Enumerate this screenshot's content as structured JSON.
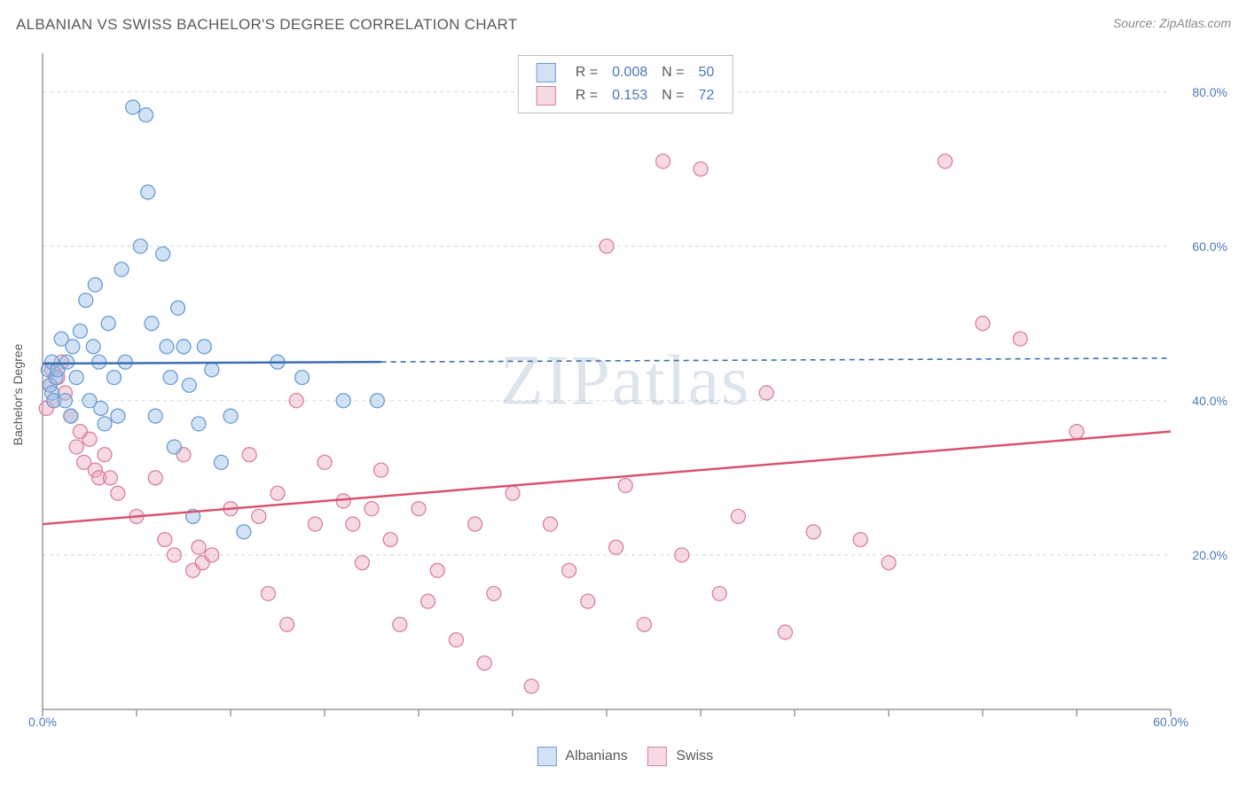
{
  "title": "ALBANIAN VS SWISS BACHELOR'S DEGREE CORRELATION CHART",
  "source_prefix": "Source: ",
  "source_name": "ZipAtlas.com",
  "watermark": "ZIPatlas",
  "chart": {
    "type": "scatter",
    "ylabel": "Bachelor's Degree",
    "xlim": [
      0,
      60
    ],
    "ylim": [
      0,
      85
    ],
    "xtick_positions": [
      0,
      5,
      10,
      15,
      20,
      25,
      30,
      35,
      40,
      45,
      50,
      55,
      60
    ],
    "xtick_labels_shown": {
      "0": "0.0%",
      "60": "60.0%"
    },
    "ytick_positions": [
      20,
      40,
      60,
      80
    ],
    "ytick_labels": [
      "20.0%",
      "40.0%",
      "60.0%",
      "80.0%"
    ],
    "grid_color": "#d8d8d8",
    "axis_color": "#9a9a9a",
    "background_color": "#ffffff",
    "series": {
      "albanians": {
        "label": "Albanians",
        "fill": "rgba(150,190,230,0.45)",
        "stroke": "#6d9dd1",
        "line_color": "#3c6fb0",
        "marker_r": 8,
        "R_label": "R =",
        "R_value": "0.008",
        "N_label": "N =",
        "N_value": "50",
        "regression": {
          "x1": 0,
          "y1": 44.8,
          "x2": 60,
          "y2": 45.5,
          "solid_until_x": 18
        },
        "points": [
          [
            0.3,
            44
          ],
          [
            0.4,
            42
          ],
          [
            0.5,
            41
          ],
          [
            0.6,
            40
          ],
          [
            0.5,
            45
          ],
          [
            0.7,
            43
          ],
          [
            0.8,
            44
          ],
          [
            1.0,
            48
          ],
          [
            1.2,
            40
          ],
          [
            1.5,
            38
          ],
          [
            1.3,
            45
          ],
          [
            1.6,
            47
          ],
          [
            1.8,
            43
          ],
          [
            2.0,
            49
          ],
          [
            2.3,
            53
          ],
          [
            2.5,
            40
          ],
          [
            2.7,
            47
          ],
          [
            2.8,
            55
          ],
          [
            3.0,
            45
          ],
          [
            3.1,
            39
          ],
          [
            3.3,
            37
          ],
          [
            3.5,
            50
          ],
          [
            3.8,
            43
          ],
          [
            4.0,
            38
          ],
          [
            4.2,
            57
          ],
          [
            4.4,
            45
          ],
          [
            4.8,
            78
          ],
          [
            5.2,
            60
          ],
          [
            5.5,
            77
          ],
          [
            5.6,
            67
          ],
          [
            5.8,
            50
          ],
          [
            6.0,
            38
          ],
          [
            6.4,
            59
          ],
          [
            6.6,
            47
          ],
          [
            6.8,
            43
          ],
          [
            7.0,
            34
          ],
          [
            7.2,
            52
          ],
          [
            7.5,
            47
          ],
          [
            7.8,
            42
          ],
          [
            8.0,
            25
          ],
          [
            8.3,
            37
          ],
          [
            8.6,
            47
          ],
          [
            9.0,
            44
          ],
          [
            9.5,
            32
          ],
          [
            10.0,
            38
          ],
          [
            10.7,
            23
          ],
          [
            12.5,
            45
          ],
          [
            13.8,
            43
          ],
          [
            16.0,
            40
          ],
          [
            17.8,
            40
          ]
        ]
      },
      "swiss": {
        "label": "Swiss",
        "fill": "rgba(235,160,185,0.40)",
        "stroke": "#d9819f",
        "line_color": "#d8536f",
        "marker_r": 8,
        "R_label": "R =",
        "R_value": "0.153",
        "N_label": "N =",
        "N_value": "72",
        "regression": {
          "x1": 0,
          "y1": 24,
          "x2": 60,
          "y2": 36,
          "solid_until_x": 60
        },
        "points": [
          [
            0.2,
            39
          ],
          [
            0.4,
            42
          ],
          [
            0.5,
            44
          ],
          [
            0.6,
            40
          ],
          [
            0.8,
            43
          ],
          [
            1.0,
            45
          ],
          [
            1.2,
            41
          ],
          [
            1.5,
            38
          ],
          [
            1.8,
            34
          ],
          [
            2.0,
            36
          ],
          [
            2.2,
            32
          ],
          [
            2.5,
            35
          ],
          [
            2.8,
            31
          ],
          [
            3.0,
            30
          ],
          [
            3.3,
            33
          ],
          [
            3.6,
            30
          ],
          [
            4.0,
            28
          ],
          [
            5.0,
            25
          ],
          [
            6.0,
            30
          ],
          [
            6.5,
            22
          ],
          [
            7.0,
            20
          ],
          [
            7.5,
            33
          ],
          [
            8.0,
            18
          ],
          [
            8.3,
            21
          ],
          [
            8.5,
            19
          ],
          [
            9.0,
            20
          ],
          [
            10.0,
            26
          ],
          [
            11.0,
            33
          ],
          [
            11.5,
            25
          ],
          [
            12.0,
            15
          ],
          [
            12.5,
            28
          ],
          [
            13.0,
            11
          ],
          [
            13.5,
            40
          ],
          [
            14.5,
            24
          ],
          [
            15.0,
            32
          ],
          [
            16.0,
            27
          ],
          [
            16.5,
            24
          ],
          [
            17.0,
            19
          ],
          [
            17.5,
            26
          ],
          [
            18.0,
            31
          ],
          [
            18.5,
            22
          ],
          [
            19.0,
            11
          ],
          [
            20.0,
            26
          ],
          [
            20.5,
            14
          ],
          [
            21.0,
            18
          ],
          [
            22.0,
            9
          ],
          [
            23.0,
            24
          ],
          [
            23.5,
            6
          ],
          [
            24.0,
            15
          ],
          [
            25.0,
            28
          ],
          [
            26.0,
            3
          ],
          [
            27.0,
            24
          ],
          [
            28.0,
            18
          ],
          [
            29.0,
            14
          ],
          [
            30.0,
            60
          ],
          [
            30.5,
            21
          ],
          [
            31.0,
            29
          ],
          [
            32.0,
            11
          ],
          [
            33.0,
            71
          ],
          [
            34.0,
            20
          ],
          [
            35.0,
            70
          ],
          [
            36.0,
            15
          ],
          [
            37.0,
            25
          ],
          [
            38.5,
            41
          ],
          [
            39.5,
            10
          ],
          [
            41.0,
            23
          ],
          [
            43.5,
            22
          ],
          [
            45.0,
            19
          ],
          [
            48.0,
            71
          ],
          [
            50.0,
            50
          ],
          [
            52.0,
            48
          ],
          [
            55.0,
            36
          ]
        ]
      }
    }
  }
}
